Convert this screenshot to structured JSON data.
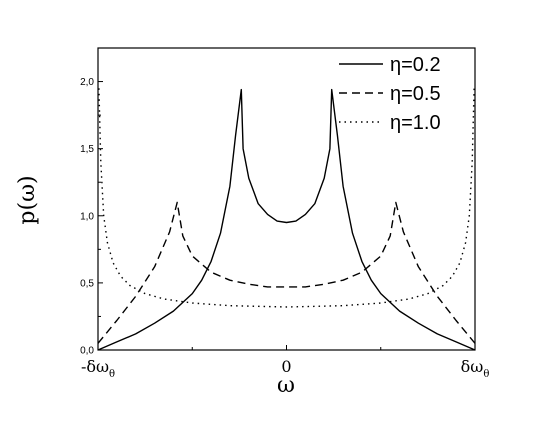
{
  "chart_data": {
    "type": "line",
    "xlabel": "ω",
    "ylabel": "p(ω)",
    "xlim": [
      -1,
      1
    ],
    "ylim": [
      0,
      2.25
    ],
    "x_ticks": [
      {
        "value": -1,
        "label": "-δω",
        "sub": "θ"
      },
      {
        "value": 0,
        "label": "0",
        "sub": ""
      },
      {
        "value": 1,
        "label": "δω",
        "sub": "θ"
      }
    ],
    "y_ticks": [
      {
        "value": 0,
        "label": "0,0"
      },
      {
        "value": 0.5,
        "label": "0,5"
      },
      {
        "value": 1.0,
        "label": "1,0"
      },
      {
        "value": 1.5,
        "label": "1,5"
      },
      {
        "value": 2.0,
        "label": "2,0"
      }
    ],
    "grid": false,
    "legend_position": "top-right",
    "series": [
      {
        "name": "η=0.2",
        "style": "solid",
        "points": [
          [
            -1.0,
            0.0
          ],
          [
            -0.9,
            0.06
          ],
          [
            -0.8,
            0.12
          ],
          [
            -0.7,
            0.2
          ],
          [
            -0.6,
            0.29
          ],
          [
            -0.5,
            0.42
          ],
          [
            -0.45,
            0.52
          ],
          [
            -0.4,
            0.66
          ],
          [
            -0.35,
            0.87
          ],
          [
            -0.3,
            1.22
          ],
          [
            -0.27,
            1.6
          ],
          [
            -0.24,
            1.94
          ],
          [
            -0.23,
            1.5
          ],
          [
            -0.2,
            1.28
          ],
          [
            -0.15,
            1.09
          ],
          [
            -0.1,
            1.01
          ],
          [
            -0.05,
            0.96
          ],
          [
            0.0,
            0.95
          ],
          [
            0.05,
            0.96
          ],
          [
            0.1,
            1.01
          ],
          [
            0.15,
            1.09
          ],
          [
            0.2,
            1.28
          ],
          [
            0.23,
            1.5
          ],
          [
            0.24,
            1.94
          ],
          [
            0.27,
            1.6
          ],
          [
            0.3,
            1.22
          ],
          [
            0.35,
            0.87
          ],
          [
            0.4,
            0.66
          ],
          [
            0.45,
            0.52
          ],
          [
            0.5,
            0.42
          ],
          [
            0.6,
            0.29
          ],
          [
            0.7,
            0.2
          ],
          [
            0.8,
            0.12
          ],
          [
            0.9,
            0.06
          ],
          [
            1.0,
            0.0
          ]
        ]
      },
      {
        "name": "η=0.5",
        "style": "dashed",
        "points": [
          [
            -1.0,
            0.05
          ],
          [
            -0.9,
            0.22
          ],
          [
            -0.8,
            0.4
          ],
          [
            -0.7,
            0.62
          ],
          [
            -0.62,
            0.88
          ],
          [
            -0.58,
            1.1
          ],
          [
            -0.55,
            0.85
          ],
          [
            -0.5,
            0.7
          ],
          [
            -0.4,
            0.58
          ],
          [
            -0.3,
            0.52
          ],
          [
            -0.2,
            0.49
          ],
          [
            -0.1,
            0.47
          ],
          [
            0.0,
            0.47
          ],
          [
            0.1,
            0.47
          ],
          [
            0.2,
            0.49
          ],
          [
            0.3,
            0.52
          ],
          [
            0.4,
            0.58
          ],
          [
            0.5,
            0.7
          ],
          [
            0.55,
            0.85
          ],
          [
            0.58,
            1.1
          ],
          [
            0.62,
            0.88
          ],
          [
            0.7,
            0.62
          ],
          [
            0.8,
            0.4
          ],
          [
            0.9,
            0.22
          ],
          [
            1.0,
            0.05
          ]
        ]
      },
      {
        "name": "η=1.0",
        "style": "dotted",
        "points": [
          [
            -0.995,
            1.95
          ],
          [
            -0.985,
            1.4
          ],
          [
            -0.97,
            1.0
          ],
          [
            -0.95,
            0.8
          ],
          [
            -0.92,
            0.65
          ],
          [
            -0.88,
            0.55
          ],
          [
            -0.83,
            0.48
          ],
          [
            -0.75,
            0.42
          ],
          [
            -0.65,
            0.38
          ],
          [
            -0.5,
            0.35
          ],
          [
            -0.3,
            0.33
          ],
          [
            0.0,
            0.32
          ],
          [
            0.3,
            0.33
          ],
          [
            0.5,
            0.35
          ],
          [
            0.65,
            0.38
          ],
          [
            0.75,
            0.42
          ],
          [
            0.83,
            0.48
          ],
          [
            0.88,
            0.55
          ],
          [
            0.92,
            0.65
          ],
          [
            0.95,
            0.8
          ],
          [
            0.97,
            1.0
          ],
          [
            0.985,
            1.4
          ],
          [
            0.995,
            1.95
          ]
        ]
      }
    ]
  }
}
